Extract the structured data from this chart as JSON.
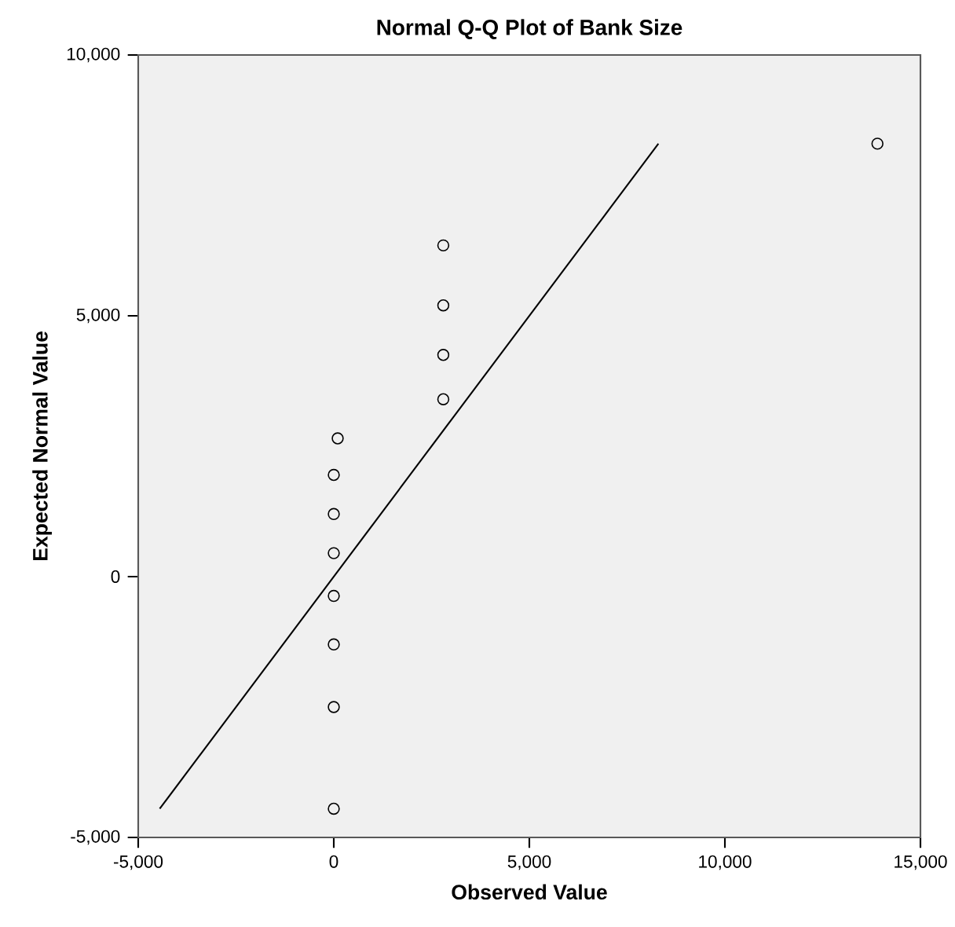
{
  "chart_data": {
    "type": "scatter",
    "title": "Normal Q-Q Plot of Bank Size",
    "xlabel": "Observed Value",
    "ylabel": "Expected Normal Value",
    "marker": "circle",
    "series": [
      {
        "color": "#000000",
        "x": [
          0,
          0,
          0,
          0,
          0,
          0,
          0,
          100,
          2800,
          2800,
          2800,
          2800,
          13900
        ],
        "values": [
          -4450,
          -2500,
          -1300,
          -370,
          450,
          1200,
          1950,
          2650,
          3400,
          4250,
          5200,
          6350,
          8300
        ]
      },
      {
        "type": "line",
        "color": "#000000",
        "marker": "none",
        "x": [
          -4450,
          8300
        ],
        "values": [
          -4450,
          8300
        ]
      }
    ],
    "xlim": [
      -5000,
      15000
    ],
    "ylim": [
      -5000,
      10000
    ],
    "xticks": [
      {
        "value": -5000,
        "label": "-5,000"
      },
      0,
      {
        "value": 5000,
        "label": "5,000"
      },
      {
        "value": 10000,
        "label": "10,000"
      },
      {
        "value": 15000,
        "label": "15,000"
      }
    ],
    "yticks": [
      {
        "value": -5000,
        "label": "-5,000"
      },
      0,
      {
        "value": 5000,
        "label": "5,000"
      },
      {
        "value": 10000,
        "label": "10,000"
      }
    ]
  }
}
